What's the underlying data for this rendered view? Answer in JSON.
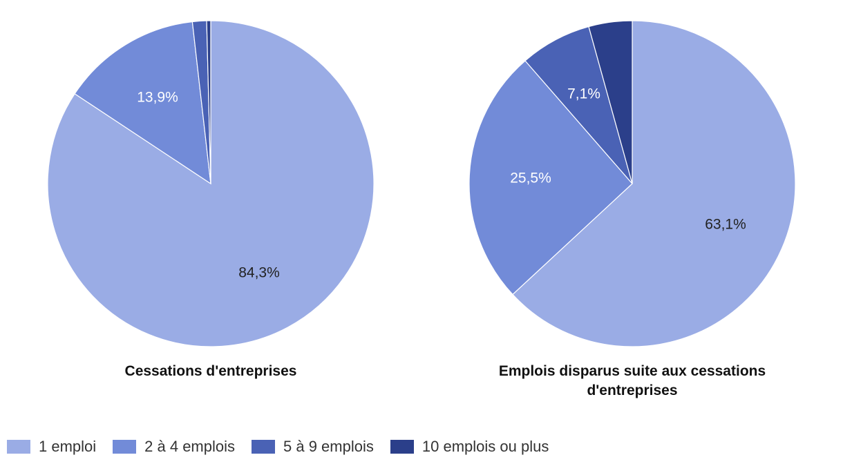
{
  "chart_data": [
    {
      "type": "pie",
      "title": "Cessations d'entreprises",
      "categories": [
        "1 emploi",
        "2 à 4 emplois",
        "5 à 9 emplois",
        "10 emplois ou plus"
      ],
      "values": [
        84.3,
        13.9,
        1.4,
        0.4
      ],
      "data_labels": [
        "84,3%",
        "13,9%",
        "",
        ""
      ],
      "colors": [
        "#9AACE5",
        "#728BD8",
        "#4A62B5",
        "#2B3F8A"
      ],
      "start_angle_deg": 0,
      "direction": "clockwise"
    },
    {
      "type": "pie",
      "title": "Emplois disparus suite aux cessations d'entreprises",
      "title_lines": [
        "Emplois disparus suite aux cessations",
        "d'entreprises"
      ],
      "categories": [
        "1 emploi",
        "2 à 4 emplois",
        "5 à 9 emplois",
        "10 emplois ou plus"
      ],
      "values": [
        63.1,
        25.5,
        7.1,
        4.3
      ],
      "data_labels": [
        "63,1%",
        "25,5%",
        "7,1%",
        ""
      ],
      "colors": [
        "#9AACE5",
        "#728BD8",
        "#4A62B5",
        "#2B3F8A"
      ],
      "start_angle_deg": 0,
      "direction": "clockwise"
    }
  ],
  "legend": {
    "placement": "bottom-left",
    "items": [
      {
        "label": "1 emploi",
        "color": "#9AACE5"
      },
      {
        "label": "2 à 4 emplois",
        "color": "#728BD8"
      },
      {
        "label": "5 à 9 emplois",
        "color": "#4A62B5"
      },
      {
        "label": "10 emplois ou plus",
        "color": "#2B3F8A"
      }
    ]
  },
  "label_colors": {
    "light": "#FFFFFF",
    "dark": "#222222"
  }
}
